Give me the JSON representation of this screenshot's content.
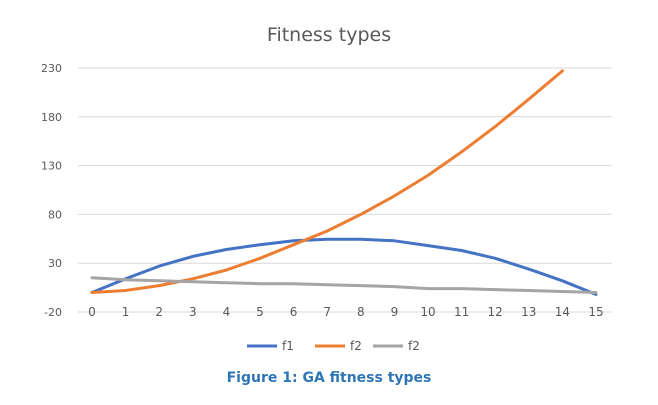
{
  "chart_data": {
    "type": "line",
    "title": "Fitness types",
    "x": [
      0,
      1,
      2,
      3,
      4,
      5,
      6,
      7,
      8,
      9,
      10,
      11,
      12,
      13,
      14,
      15
    ],
    "ylim": [
      -20,
      230
    ],
    "yticks": [
      -20,
      30,
      80,
      130,
      180,
      230
    ],
    "grid": true,
    "legend_position": "bottom",
    "series": [
      {
        "name": "f1",
        "color": "#4472c4",
        "values": [
          0,
          14,
          27,
          37,
          44,
          49,
          53,
          54.5,
          54.5,
          53,
          48,
          43,
          35,
          24,
          12,
          -2
        ]
      },
      {
        "name": "f2",
        "color": "#ed7d31",
        "values": [
          0,
          2,
          7,
          14,
          23,
          35,
          49,
          63,
          80,
          99,
          120,
          144,
          170,
          198,
          227,
          null
        ]
      },
      {
        "name": "f2",
        "color": "#a5a5a5",
        "values": [
          15,
          13,
          12,
          11,
          10,
          9,
          9,
          8,
          7,
          6,
          4,
          4,
          3,
          2,
          1,
          0
        ]
      }
    ]
  },
  "caption": "Figure 1: GA fitness types"
}
